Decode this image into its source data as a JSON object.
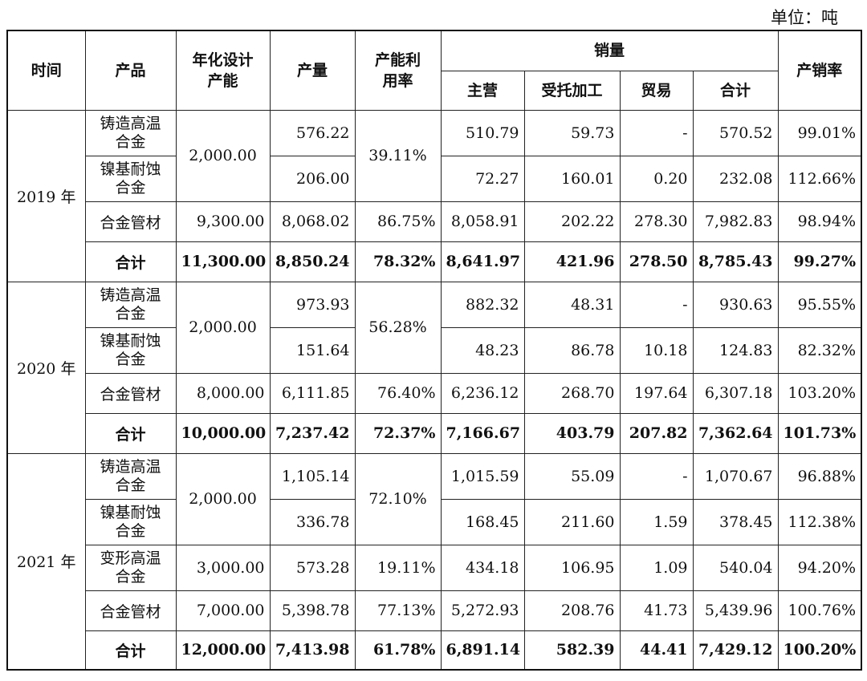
{
  "unit_label": "单位：吨",
  "headers": {
    "time": "时间",
    "product": "产品",
    "capacity_l1": "年化设计",
    "capacity_l2": "产能",
    "output": "产量",
    "util_l1": "产能利",
    "util_l2": "用率",
    "sales": "销量",
    "main": "主营",
    "entrusted": "受托加工",
    "trade": "贸易",
    "sales_total": "合计",
    "ratio": "产销率"
  },
  "years": [
    {
      "year": "2019 年",
      "rows": [
        {
          "p1": "铸造高温",
          "p2": "合金",
          "capacity": "2,000.00",
          "output": "576.22",
          "util": "39.11%",
          "main": "510.79",
          "entrusted": "59.73",
          "trade": "-",
          "total": "570.52",
          "ratio": "99.01%"
        },
        {
          "p1": "镍基耐蚀",
          "p2": "合金",
          "output": "206.00",
          "main": "72.27",
          "entrusted": "160.01",
          "trade": "0.20",
          "total": "232.08",
          "ratio": "112.66%"
        },
        {
          "p1": "合金管材",
          "capacity": "9,300.00",
          "output": "8,068.02",
          "util": "86.75%",
          "main": "8,058.91",
          "entrusted": "202.22",
          "trade": "278.30",
          "total": "7,982.83",
          "ratio": "98.94%"
        },
        {
          "p1": "合计",
          "capacity": "11,300.00",
          "output": "8,850.24",
          "util": "78.32%",
          "main": "8,641.97",
          "entrusted": "421.96",
          "trade": "278.50",
          "total": "8,785.43",
          "ratio": "99.27%"
        }
      ]
    },
    {
      "year": "2020 年",
      "rows": [
        {
          "p1": "铸造高温",
          "p2": "合金",
          "capacity": "2,000.00",
          "output": "973.93",
          "util": "56.28%",
          "main": "882.32",
          "entrusted": "48.31",
          "trade": "-",
          "total": "930.63",
          "ratio": "95.55%"
        },
        {
          "p1": "镍基耐蚀",
          "p2": "合金",
          "output": "151.64",
          "main": "48.23",
          "entrusted": "86.78",
          "trade": "10.18",
          "total": "124.83",
          "ratio": "82.32%"
        },
        {
          "p1": "合金管材",
          "capacity": "8,000.00",
          "output": "6,111.85",
          "util": "76.40%",
          "main": "6,236.12",
          "entrusted": "268.70",
          "trade": "197.64",
          "total": "6,307.18",
          "ratio": "103.20%"
        },
        {
          "p1": "合计",
          "capacity": "10,000.00",
          "output": "7,237.42",
          "util": "72.37%",
          "main": "7,166.67",
          "entrusted": "403.79",
          "trade": "207.82",
          "total": "7,362.64",
          "ratio": "101.73%"
        }
      ]
    },
    {
      "year": "2021 年",
      "rows": [
        {
          "p1": "铸造高温",
          "p2": "合金",
          "capacity": "2,000.00",
          "output": "1,105.14",
          "util": "72.10%",
          "main": "1,015.59",
          "entrusted": "55.09",
          "trade": "-",
          "total": "1,070.67",
          "ratio": "96.88%"
        },
        {
          "p1": "镍基耐蚀",
          "p2": "合金",
          "output": "336.78",
          "main": "168.45",
          "entrusted": "211.60",
          "trade": "1.59",
          "total": "378.45",
          "ratio": "112.38%"
        },
        {
          "p1": "变形高温",
          "p2": "合金",
          "capacity": "3,000.00",
          "output": "573.28",
          "util": "19.11%",
          "main": "434.18",
          "entrusted": "106.95",
          "trade": "1.09",
          "total": "540.04",
          "ratio": "94.20%"
        },
        {
          "p1": "合金管材",
          "capacity": "7,000.00",
          "output": "5,398.78",
          "util": "77.13%",
          "main": "5,272.93",
          "entrusted": "208.76",
          "trade": "41.73",
          "total": "5,439.96",
          "ratio": "100.76%"
        },
        {
          "p1": "合计",
          "capacity": "12,000.00",
          "output": "7,413.98",
          "util": "61.78%",
          "main": "6,891.14",
          "entrusted": "582.39",
          "trade": "44.41",
          "total": "7,429.12",
          "ratio": "100.20%"
        }
      ]
    }
  ]
}
